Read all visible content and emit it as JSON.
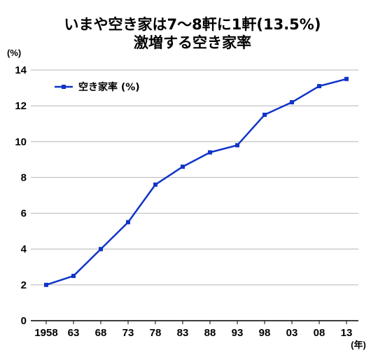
{
  "chart_data": {
    "type": "line",
    "title_line1": "いまや空き家は7～8軒に1軒(13.5%)",
    "title_line2": "激増する空き家率",
    "y_unit": "(%)",
    "x_unit": "(年)",
    "ylim": [
      0,
      14
    ],
    "yticks": [
      "0",
      "2",
      "4",
      "6",
      "8",
      "10",
      "12",
      "14"
    ],
    "categories": [
      "1958",
      "63",
      "68",
      "73",
      "78",
      "83",
      "88",
      "93",
      "98",
      "03",
      "08",
      "13"
    ],
    "series": [
      {
        "name": "空き家率 (%)",
        "color": "#1034c8",
        "values": [
          2.0,
          2.5,
          4.0,
          5.5,
          7.6,
          8.6,
          9.4,
          9.8,
          11.5,
          12.2,
          13.1,
          13.5
        ]
      }
    ],
    "grid": true,
    "legend_position": "top-left"
  }
}
